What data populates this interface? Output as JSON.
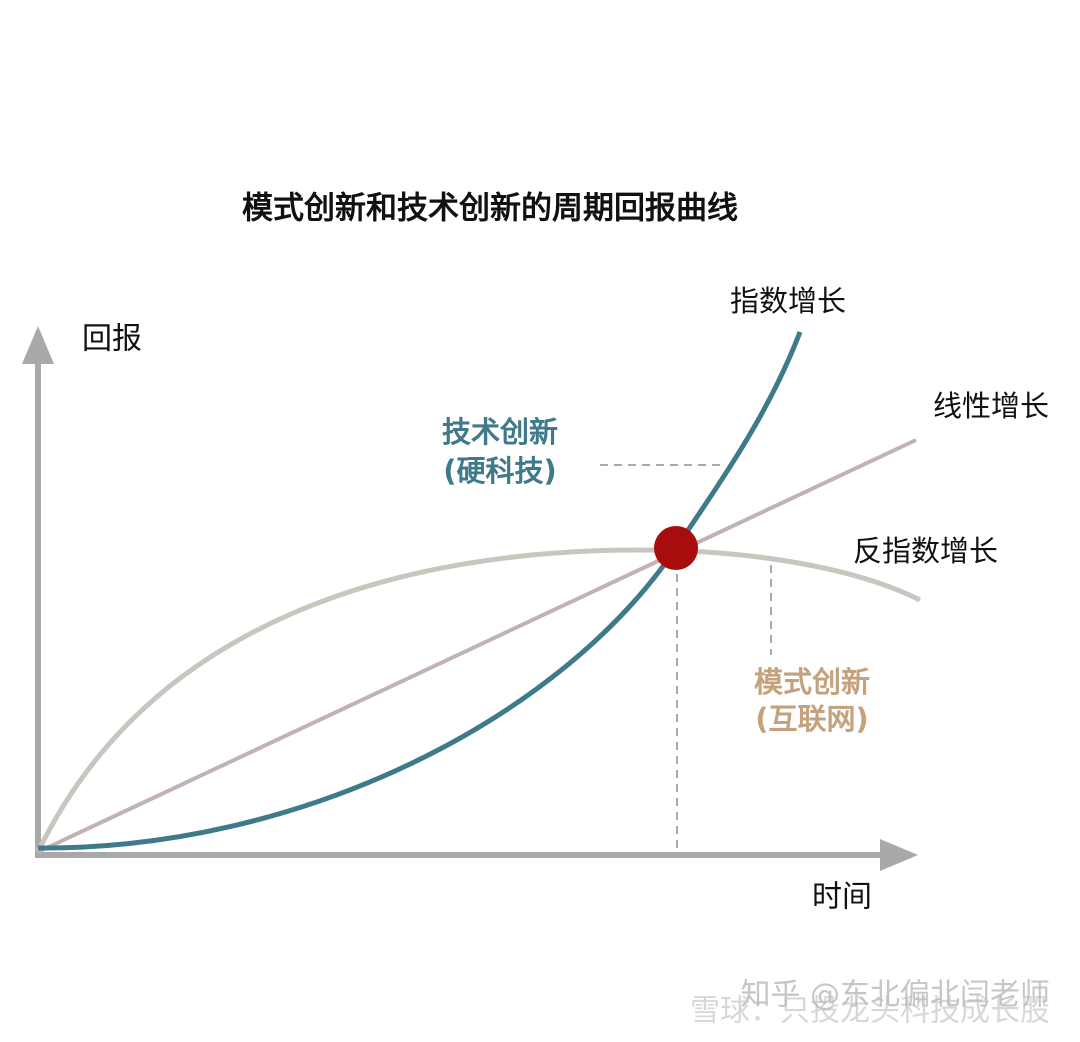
{
  "title": "模式创新和技术创新的周期回报曲线",
  "axes": {
    "y_label": "回报",
    "x_label": "时间"
  },
  "curves": [
    {
      "label": "指数增长"
    },
    {
      "label": "线性增长"
    },
    {
      "label": "反指数增长"
    }
  ],
  "annotations": [
    {
      "lines": [
        "技术创新",
        "(硬科技)"
      ]
    },
    {
      "lines": [
        "模式创新",
        "(互联网)"
      ]
    }
  ],
  "watermark": [
    "知乎 @东北偏北闫老师",
    "雪球：只投龙头科技成长股"
  ]
}
